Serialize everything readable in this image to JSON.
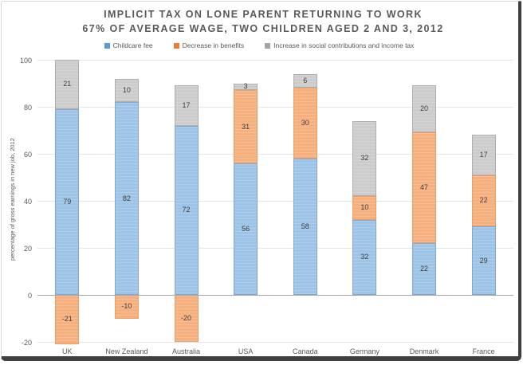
{
  "page": {
    "background": "#ffffff",
    "frame_border_light": "#d9d9d9",
    "frame_border_dark": "#3f3f3f"
  },
  "chart_data": {
    "type": "bar",
    "stacked": true,
    "title": "IMPLICIT TAX ON LONE PARENT RETURNING TO WORK",
    "subtitle": "67% OF AVERAGE WAGE, TWO CHILDREN AGED 2 AND 3, 2012",
    "ylabel": "percentage of gross earnings in new job, 2012",
    "xlabel": "",
    "categories": [
      "UK",
      "New Zealand",
      "Australia",
      "USA",
      "Canada",
      "Germany",
      "Denmark",
      "France"
    ],
    "series": [
      {
        "name": "Childcare fee",
        "values": [
          79,
          82,
          72,
          56,
          58,
          32,
          22,
          29
        ],
        "fill": "#9dc3e6",
        "border": "#7fa8d6",
        "legend_color": "#5b9bd5"
      },
      {
        "name": "Decrease in benefits",
        "values": [
          -21,
          -10,
          -20,
          31,
          30,
          10,
          47,
          22
        ],
        "fill": "#f5b07e",
        "border": "#ec9e64",
        "legend_color": "#ed7d31"
      },
      {
        "name": "Increase in social contributions and income tax",
        "values": [
          21,
          10,
          17,
          3,
          6,
          32,
          20,
          17
        ],
        "fill": "#cdcccc",
        "border": "#b0adad",
        "legend_color": "#a5a5a5"
      }
    ],
    "ylim": [
      -20,
      100
    ],
    "yticks": [
      100,
      80,
      60,
      40,
      20,
      0,
      -20
    ],
    "grid": true,
    "legend_position": "top",
    "colors": {
      "title_text": "#595959",
      "axis_text": "#595959",
      "data_label_text": "#404040",
      "gridline": "#e4e4e4",
      "zero_line": "#a6a6a6"
    }
  }
}
